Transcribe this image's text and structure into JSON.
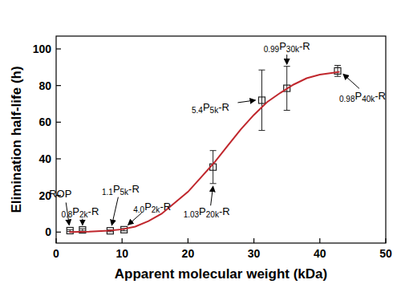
{
  "chart_data": {
    "type": "scatter",
    "x_label": "Apparent molecular weight (kDa)",
    "y_label": "Elimination half-life (h)",
    "xlim": [
      0,
      50
    ],
    "xticks": [
      0,
      10,
      20,
      30,
      40,
      50
    ],
    "ylim": [
      -6,
      107
    ],
    "yticks": [
      0,
      20,
      40,
      60,
      80,
      100
    ],
    "series": [
      {
        "type": "scatter",
        "marker": "square",
        "color": "#222222",
        "x": [
          2.1,
          4.0,
          8.2,
          10.3,
          23.8,
          31.2,
          35.0,
          42.7
        ],
        "values": [
          0.8,
          1.2,
          0.7,
          1.3,
          35.5,
          72,
          78.5,
          88
        ],
        "errors": [
          0.5,
          0.6,
          0.5,
          0.6,
          9,
          16.5,
          12,
          3
        ],
        "labels": [
          "ROP",
          "0.8P2k-R",
          "1.1P5k-R",
          "4.0P2k-R",
          "1.03P20k-R",
          "5.4P5k-R",
          "0.99P30k-R",
          "0.98P40k-R"
        ]
      },
      {
        "type": "line",
        "line_style": "solid",
        "color": "#c0272d",
        "x": [
          2,
          5,
          8,
          10,
          12,
          14,
          16,
          18,
          20,
          22,
          24,
          26,
          28,
          30,
          32,
          34,
          36,
          38,
          40,
          42,
          43
        ],
        "values": [
          0,
          0.2,
          0.8,
          1.5,
          3,
          6,
          10,
          16,
          22,
          30,
          38,
          47,
          56,
          64,
          71,
          76,
          80.5,
          84,
          86,
          87,
          87.5
        ]
      }
    ]
  }
}
